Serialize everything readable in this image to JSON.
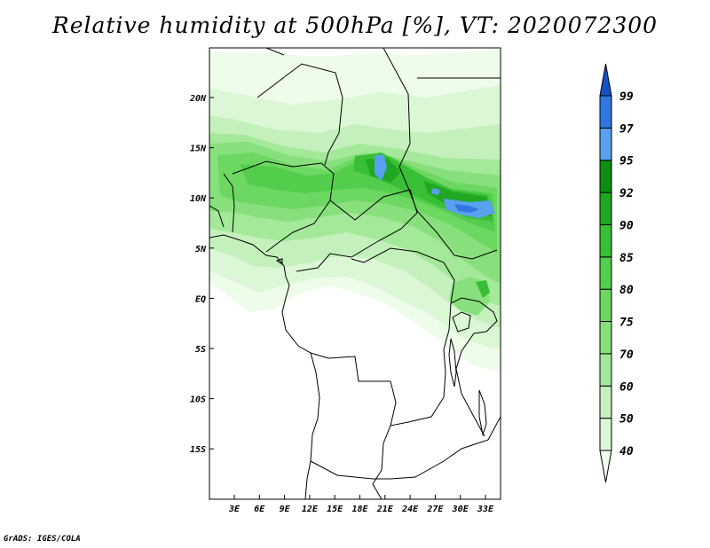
{
  "map": {
    "title": "Relative humidity at 500hPa [%], VT: 2020072300",
    "credit": "GrADS: IGES/COLA",
    "lat_labels": [
      "20N",
      "15N",
      "10N",
      "5N",
      "EQ",
      "5S",
      "10S",
      "15S"
    ],
    "lon_labels": [
      "3E",
      "6E",
      "9E",
      "12E",
      "15E",
      "18E",
      "21E",
      "24E",
      "27E",
      "30E",
      "33E"
    ],
    "extent": {
      "lon": [
        0,
        35
      ],
      "lat": [
        -20,
        25
      ]
    }
  },
  "colorbar": {
    "labels": [
      "40",
      "50",
      "60",
      "70",
      "75",
      "80",
      "85",
      "90",
      "92",
      "95",
      "97",
      "99"
    ],
    "colors": [
      "#f2fff0",
      "#dcf7d6",
      "#c4f0bc",
      "#a4e89a",
      "#88e07c",
      "#6cd862",
      "#52ce4c",
      "#38bf36",
      "#20a822",
      "#0e8e12",
      "#5aa0f0",
      "#2f78e0",
      "#1452c8"
    ]
  }
}
